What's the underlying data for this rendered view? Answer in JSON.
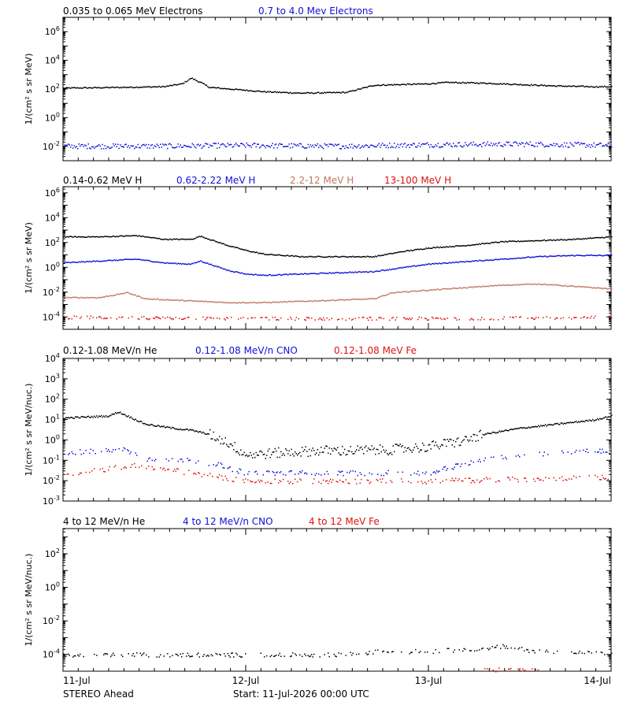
{
  "colors": {
    "black": "#000000",
    "blue": "#1010d8",
    "tan": "#c07860",
    "red": "#e01010"
  },
  "x_ticks": [
    "11-Jul",
    "12-Jul",
    "13-Jul",
    "14-Jul"
  ],
  "footer": {
    "spacecraft": "STEREO Ahead",
    "start": "Start: 11-Jul-2026 00:00 UTC"
  },
  "chart_data": [
    {
      "type": "scatter",
      "panel": "electrons",
      "ylabel": "1/(cm² s sr MeV)",
      "yscale": "log",
      "ylim_exp": [
        -3,
        7
      ],
      "xlim": [
        "11-Jul",
        "14-Jul"
      ],
      "ytick_labels": [
        "10⁶",
        "10⁴",
        "10²",
        "10⁰",
        "10⁻²"
      ],
      "series": [
        {
          "name": "0.035 to 0.065 MeV Electrons",
          "color": "#000000",
          "x_days": [
            0.0,
            0.3,
            0.55,
            0.65,
            0.7,
            0.75,
            0.8,
            0.9,
            1.1,
            1.3,
            1.55,
            1.7,
            1.85,
            2.0,
            2.1,
            2.3,
            2.5,
            2.7,
            2.9,
            3.0
          ],
          "log10_values": [
            2.1,
            2.15,
            2.2,
            2.4,
            2.8,
            2.5,
            2.15,
            2.05,
            1.85,
            1.75,
            1.8,
            2.3,
            2.35,
            2.4,
            2.5,
            2.45,
            2.35,
            2.25,
            2.2,
            2.2
          ]
        },
        {
          "name": "0.7 to 4.0 Mev Electrons",
          "color": "#1010d8",
          "x_days": [
            0.0,
            0.5,
            1.0,
            1.5,
            2.0,
            2.5,
            3.0
          ],
          "log10_values": [
            -1.95,
            -1.95,
            -1.9,
            -1.95,
            -1.85,
            -1.8,
            -1.9
          ]
        }
      ]
    },
    {
      "type": "scatter",
      "panel": "protons",
      "ylabel": "1/(cm² s sr MeV)",
      "yscale": "log",
      "ylim_exp": [
        -5,
        6.5
      ],
      "xlim": [
        "11-Jul",
        "14-Jul"
      ],
      "ytick_labels": [
        "10⁶",
        "10⁴",
        "10²",
        "10⁰",
        "10⁻²",
        "10⁻⁴"
      ],
      "series": [
        {
          "name": "0.14-0.62 MeV H",
          "color": "#000000",
          "x_days": [
            0.0,
            0.2,
            0.4,
            0.55,
            0.7,
            0.75,
            0.8,
            0.9,
            1.0,
            1.1,
            1.3,
            1.5,
            1.7,
            1.85,
            2.0,
            2.2,
            2.4,
            2.6,
            2.8,
            3.0
          ],
          "log10_values": [
            2.5,
            2.5,
            2.6,
            2.3,
            2.3,
            2.55,
            2.3,
            1.8,
            1.4,
            1.1,
            0.9,
            0.9,
            0.9,
            1.3,
            1.6,
            1.8,
            2.1,
            2.2,
            2.3,
            2.5
          ]
        },
        {
          "name": "0.62-2.22 MeV H",
          "color": "#1010d8",
          "x_days": [
            0.0,
            0.2,
            0.4,
            0.55,
            0.7,
            0.75,
            0.8,
            0.9,
            1.0,
            1.1,
            1.3,
            1.5,
            1.7,
            1.85,
            2.0,
            2.2,
            2.4,
            2.6,
            2.8,
            3.0
          ],
          "log10_values": [
            0.4,
            0.55,
            0.7,
            0.4,
            0.3,
            0.55,
            0.3,
            -0.2,
            -0.5,
            -0.6,
            -0.5,
            -0.4,
            -0.3,
            0.0,
            0.3,
            0.5,
            0.7,
            0.9,
            1.0,
            1.0
          ]
        },
        {
          "name": "2.2-12 MeV H",
          "color": "#c07860",
          "x_days": [
            0.0,
            0.2,
            0.35,
            0.45,
            0.6,
            0.75,
            0.9,
            1.1,
            1.3,
            1.5,
            1.7,
            1.8,
            2.0,
            2.2,
            2.4,
            2.6,
            2.8,
            3.0
          ],
          "log10_values": [
            -2.4,
            -2.4,
            -2.0,
            -2.5,
            -2.6,
            -2.7,
            -2.8,
            -2.8,
            -2.7,
            -2.6,
            -2.5,
            -2.0,
            -1.8,
            -1.6,
            -1.4,
            -1.3,
            -1.5,
            -1.7
          ]
        },
        {
          "name": "13-100 MeV H",
          "color": "#e01010",
          "x_days": [
            0.0,
            1.0,
            2.0,
            3.0
          ],
          "log10_values": [
            -4.0,
            -4.1,
            -4.1,
            -4.0
          ]
        }
      ]
    },
    {
      "type": "scatter",
      "panel": "low-energy-ions",
      "ylabel": "1/(cm² s sr MeV/nuc.)",
      "yscale": "log",
      "ylim_exp": [
        -3,
        4
      ],
      "xlim": [
        "11-Jul",
        "14-Jul"
      ],
      "ytick_labels": [
        "10⁴",
        "10³",
        "10²",
        "10¹",
        "10⁰",
        "10⁻¹",
        "10⁻²",
        "10⁻³"
      ],
      "series": [
        {
          "name": "0.12-1.08 MeV/n He",
          "color": "#000000",
          "x_days": [
            0.0,
            0.25,
            0.3,
            0.45,
            0.6,
            0.7,
            0.8,
            0.9,
            1.0,
            1.2,
            1.4,
            1.6,
            1.8,
            2.0,
            2.2,
            2.3,
            2.5,
            2.7,
            2.9,
            3.0
          ],
          "log10_values": [
            1.1,
            1.2,
            1.4,
            0.8,
            0.6,
            0.5,
            0.3,
            -0.1,
            -0.7,
            -0.6,
            -0.5,
            -0.5,
            -0.45,
            -0.3,
            0.0,
            0.3,
            0.6,
            0.8,
            1.0,
            1.2
          ]
        },
        {
          "name": "0.12-1.08 MeV/n CNO",
          "color": "#1010d8",
          "x_days": [
            0.0,
            0.25,
            0.3,
            0.45,
            0.6,
            0.7,
            0.85,
            1.0,
            1.5,
            2.0,
            2.3,
            2.5,
            2.7,
            2.9,
            3.0
          ],
          "log10_values": [
            -0.6,
            -0.5,
            -0.3,
            -0.9,
            -0.9,
            -1.0,
            -1.2,
            -1.6,
            -1.6,
            -1.6,
            -0.9,
            -0.8,
            -0.6,
            -0.5,
            -0.5
          ]
        },
        {
          "name": "0.12-1.08 MeV Fe",
          "color": "#e01010",
          "x_days": [
            0.0,
            0.4,
            1.0,
            2.0,
            3.0
          ],
          "log10_values": [
            -1.7,
            -1.2,
            -2.0,
            -2.0,
            -1.8
          ]
        }
      ]
    },
    {
      "type": "scatter",
      "panel": "high-energy-ions",
      "ylabel": "1/(cm² s sr MeV/nuc.)",
      "yscale": "log",
      "ylim_exp": [
        -5,
        3.5
      ],
      "xlim": [
        "11-Jul",
        "14-Jul"
      ],
      "ytick_labels": [
        "10²",
        "10⁰",
        "10⁻²",
        "10⁻⁴"
      ],
      "series": [
        {
          "name": "4 to 12 MeV/n He",
          "color": "#000000",
          "x_days": [
            0.0,
            0.5,
            1.0,
            1.5,
            1.75,
            2.0,
            2.3,
            2.4,
            2.6,
            2.8,
            3.0
          ],
          "log10_values": [
            -4.0,
            -4.0,
            -4.0,
            -4.0,
            -3.8,
            -3.8,
            -3.6,
            -3.5,
            -3.8,
            -3.8,
            -4.0
          ]
        },
        {
          "name": "4 to 12 MeV/n CNO",
          "color": "#1010d8",
          "x_days": [],
          "log10_values": []
        },
        {
          "name": "4 to 12 MeV Fe",
          "color": "#e01010",
          "x_days": [
            2.3,
            2.4,
            2.6
          ],
          "log10_values": [
            -4.9,
            -4.9,
            -4.9
          ]
        }
      ]
    }
  ]
}
